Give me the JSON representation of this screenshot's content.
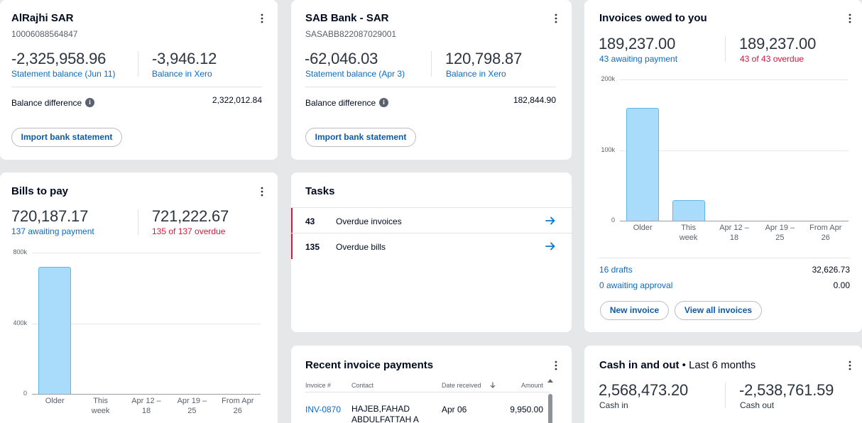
{
  "alrajhi": {
    "title": "AlRajhi SAR",
    "account": "10006088564847",
    "statement_amount": "-2,325,958.96",
    "statement_label": "Statement balance (Jun 11)",
    "xero_amount": "-3,946.12",
    "xero_label": "Balance in Xero",
    "diff_label": "Balance difference",
    "diff_value": "2,322,012.84",
    "import_label": "Import bank statement"
  },
  "sab": {
    "title": "SAB Bank - SAR",
    "account": "SASABB822087029001",
    "statement_amount": "-62,046.03",
    "statement_label": "Statement balance (Apr 3)",
    "xero_amount": "120,798.87",
    "xero_label": "Balance in Xero",
    "diff_label": "Balance difference",
    "diff_value": "182,844.90",
    "import_label": "Import bank statement"
  },
  "invoices": {
    "title": "Invoices owed to you",
    "awaiting_amount": "189,237.00",
    "awaiting_label": "43 awaiting payment",
    "overdue_amount": "189,237.00",
    "overdue_label": "43 of 43 overdue",
    "drafts_label": "16 drafts",
    "drafts_value": "32,626.73",
    "approval_label": "0 awaiting approval",
    "approval_value": "0.00",
    "new_invoice_label": "New invoice",
    "view_all_label": "View all invoices"
  },
  "bills": {
    "title": "Bills to pay",
    "awaiting_amount": "720,187.17",
    "awaiting_label": "137 awaiting payment",
    "overdue_amount": "721,222.67",
    "overdue_label": "135 of 137 overdue"
  },
  "tasks": {
    "title": "Tasks",
    "items": [
      {
        "count": "43",
        "label": "Overdue invoices"
      },
      {
        "count": "135",
        "label": "Overdue bills"
      }
    ]
  },
  "payments": {
    "title": "Recent invoice payments",
    "columns": [
      "Invoice #",
      "Contact",
      "Date received",
      "Amount"
    ],
    "rows": [
      {
        "invoice": "INV-0870",
        "contact": "HAJEB,FAHAD ABDULFATTAH A",
        "date": "Apr 06",
        "amount": "9,950.00"
      }
    ]
  },
  "cash": {
    "title": "Cash in and out",
    "period": "• Last 6 months",
    "in_amount": "2,568,473.20",
    "in_label": "Cash in",
    "out_amount": "-2,538,761.59",
    "out_label": "Cash out"
  },
  "chart_data": [
    {
      "type": "bar",
      "title": "Invoices owed to you",
      "categories": [
        "Older",
        "This week",
        "Apr 12 – 18",
        "Apr 19 – 25",
        "From Apr 26"
      ],
      "values": [
        160000,
        29000,
        0,
        0,
        0
      ],
      "y_ticks": [
        "0",
        "100k",
        "200k"
      ],
      "ylim": [
        0,
        200000
      ],
      "grid": true
    },
    {
      "type": "bar",
      "title": "Bills to pay",
      "categories": [
        "Older",
        "This week",
        "Apr 12 – 18",
        "Apr 19 – 25",
        "From Apr 26"
      ],
      "values": [
        720187,
        0,
        0,
        0,
        0
      ],
      "y_ticks": [
        "0",
        "400k",
        "800k"
      ],
      "ylim": [
        0,
        800000
      ],
      "grid": true
    }
  ],
  "colors": {
    "link": "#0b6bc2",
    "overdue": "#d8173a",
    "bar_fill": "#a9dcfa",
    "bar_stroke": "#5fb6ea"
  }
}
